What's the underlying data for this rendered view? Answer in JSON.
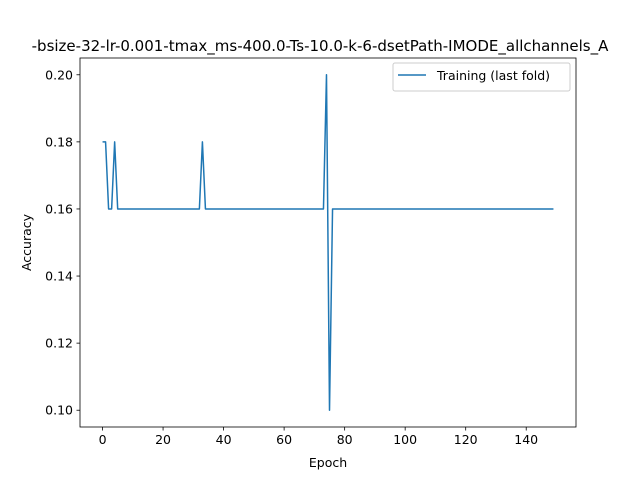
{
  "chart_data": {
    "type": "line",
    "title": "-bsize-32-lr-0.001-tmax_ms-400.0-Ts-10.0-k-6-dsetPath-IMODE_allchannels_A",
    "xlabel": "Epoch",
    "ylabel": "Accuracy",
    "xlim": [
      -7.45,
      156.45
    ],
    "ylim": [
      0.095,
      0.205
    ],
    "xticks": [
      0,
      20,
      40,
      60,
      80,
      100,
      120,
      140
    ],
    "yticks": [
      0.1,
      0.12,
      0.14,
      0.16,
      0.18,
      0.2
    ],
    "ytick_labels": [
      "0.10",
      "0.12",
      "0.14",
      "0.16",
      "0.18",
      "0.20"
    ],
    "legend_position": "top-right",
    "grid": false,
    "series": [
      {
        "name": "Training (last fold)",
        "color": "#1f77b4",
        "points": [
          [
            0,
            0.18
          ],
          [
            1,
            0.18
          ],
          [
            2,
            0.16
          ],
          [
            3,
            0.16
          ],
          [
            4,
            0.18
          ],
          [
            5,
            0.16
          ],
          [
            32,
            0.16
          ],
          [
            33,
            0.18
          ],
          [
            34,
            0.16
          ],
          [
            73,
            0.16
          ],
          [
            74,
            0.2
          ],
          [
            75,
            0.1
          ],
          [
            76,
            0.16
          ],
          [
            149,
            0.16
          ]
        ]
      }
    ]
  }
}
